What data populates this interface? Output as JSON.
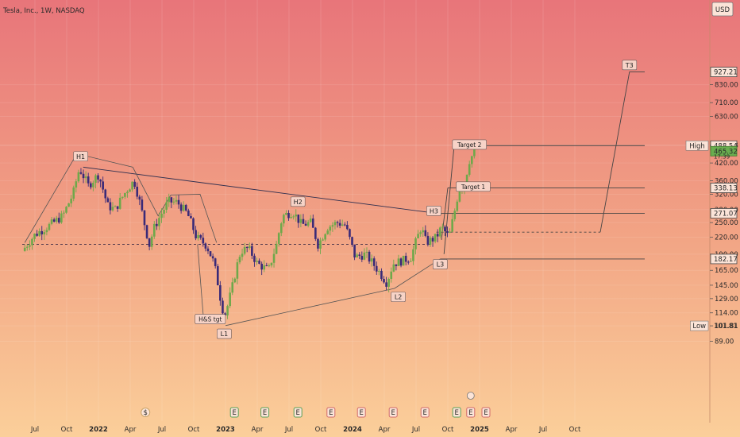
{
  "chart_data": {
    "type": "candlestick",
    "title": "Tesla, Inc., 1W, NASDAQ",
    "currency": "USD",
    "x_ticks": [
      "Jul",
      "Oct",
      "2022",
      "Apr",
      "Jul",
      "Oct",
      "2023",
      "Apr",
      "Jul",
      "Oct",
      "2024",
      "Apr",
      "Jul",
      "Oct",
      "2025",
      "Apr",
      "Jul",
      "Oct"
    ],
    "bold_ticks": [
      "2022",
      "2023",
      "2024",
      "2025"
    ],
    "y_ticks": [
      89.0,
      101.81,
      114.0,
      129.0,
      145.0,
      165.0,
      190.0,
      220.0,
      250.0,
      280.0,
      320.0,
      360.0,
      420.0,
      488.54,
      491.73,
      630.0,
      710.0,
      830.0
    ],
    "y_tick_labels": [
      "89.00",
      "101.81",
      "114.00",
      "129.00",
      "145.00",
      "165.00",
      "190.00",
      "220.00",
      "250.00",
      "280.00",
      "320.00",
      "360.00",
      "420.00",
      "488.54",
      "491.73",
      "630.00",
      "710.00",
      "830.00"
    ],
    "y_scale": "log",
    "price_boxes": [
      {
        "value": "927.21",
        "price": 927.21,
        "style": "outline"
      },
      {
        "value": "491.73",
        "price": 491.73,
        "style": "plain"
      },
      {
        "value": "488.54",
        "price": 488.54,
        "style": "outline",
        "tag": "High"
      },
      {
        "value": "465.32",
        "price": 465.32,
        "style": "green"
      },
      {
        "value": "338.13",
        "price": 338.13,
        "style": "outline"
      },
      {
        "value": "271.07",
        "price": 271.07,
        "style": "outline"
      },
      {
        "value": "182.17",
        "price": 182.17,
        "style": "outline"
      },
      {
        "value": "101.81",
        "price": 101.81,
        "style": "plain",
        "tag": "Low"
      }
    ],
    "sub_value": "17:39",
    "pattern_labels": [
      "H1",
      "H2",
      "H3",
      "L1",
      "L2",
      "L3",
      "T3",
      "Target 1",
      "Target 2",
      "H&S tgt"
    ],
    "events": [
      "$",
      "E",
      "E",
      "E",
      "E",
      "E",
      "E",
      "E",
      "E",
      "E",
      "E"
    ],
    "colors": {
      "up": "#6fa84a",
      "down": "#3a2a78",
      "bg_top": "#e8757a",
      "bg_bottom": "#fbcf9a"
    }
  }
}
